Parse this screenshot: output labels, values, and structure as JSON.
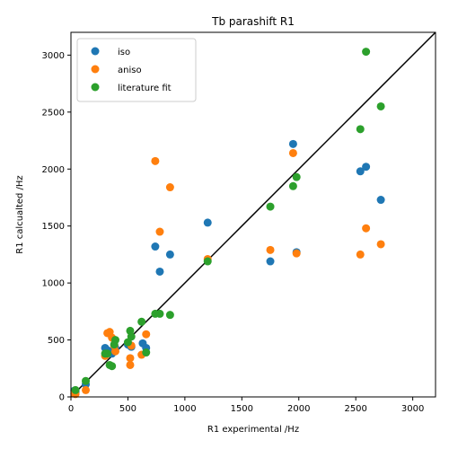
{
  "chart_data": {
    "type": "scatter",
    "title": "Tb parashift R1",
    "xlabel": "R1 experimental /Hz",
    "ylabel": "R1 calcualted /Hz",
    "xlim": [
      0,
      3200
    ],
    "ylim": [
      0,
      3200
    ],
    "xticks": [
      0,
      500,
      1000,
      1500,
      2000,
      2500,
      3000
    ],
    "yticks": [
      0,
      500,
      1000,
      1500,
      2000,
      2500,
      3000
    ],
    "grid": false,
    "legend": "top-left",
    "reference_line": {
      "x": [
        0,
        3200
      ],
      "y": [
        0,
        3200
      ],
      "color": "#000000"
    },
    "series": [
      {
        "name": "iso",
        "color": "#1f77b4",
        "points": [
          [
            30,
            55
          ],
          [
            40,
            45
          ],
          [
            130,
            110
          ],
          [
            300,
            430
          ],
          [
            320,
            410
          ],
          [
            340,
            400
          ],
          [
            360,
            380
          ],
          [
            390,
            430
          ],
          [
            500,
            460
          ],
          [
            520,
            450
          ],
          [
            530,
            440
          ],
          [
            630,
            470
          ],
          [
            660,
            430
          ],
          [
            740,
            1320
          ],
          [
            780,
            1100
          ],
          [
            870,
            1250
          ],
          [
            1200,
            1530
          ],
          [
            1750,
            1190
          ],
          [
            1950,
            2220
          ],
          [
            1980,
            1270
          ],
          [
            2540,
            1980
          ],
          [
            2590,
            2020
          ],
          [
            2720,
            1730
          ]
        ]
      },
      {
        "name": "aniso",
        "color": "#ff7f0e",
        "points": [
          [
            30,
            30
          ],
          [
            40,
            25
          ],
          [
            130,
            60
          ],
          [
            300,
            360
          ],
          [
            320,
            560
          ],
          [
            340,
            570
          ],
          [
            360,
            520
          ],
          [
            380,
            450
          ],
          [
            390,
            400
          ],
          [
            520,
            280
          ],
          [
            520,
            340
          ],
          [
            530,
            450
          ],
          [
            620,
            370
          ],
          [
            660,
            550
          ],
          [
            740,
            2070
          ],
          [
            780,
            1450
          ],
          [
            870,
            1840
          ],
          [
            1200,
            1210
          ],
          [
            1750,
            1290
          ],
          [
            1950,
            2140
          ],
          [
            1980,
            1260
          ],
          [
            2540,
            1250
          ],
          [
            2590,
            1480
          ],
          [
            2720,
            1340
          ]
        ]
      },
      {
        "name": "literature fit",
        "color": "#2ca02c",
        "points": [
          [
            40,
            60
          ],
          [
            130,
            140
          ],
          [
            300,
            380
          ],
          [
            320,
            380
          ],
          [
            340,
            280
          ],
          [
            360,
            270
          ],
          [
            380,
            460
          ],
          [
            390,
            500
          ],
          [
            500,
            480
          ],
          [
            520,
            580
          ],
          [
            530,
            530
          ],
          [
            620,
            660
          ],
          [
            660,
            390
          ],
          [
            740,
            730
          ],
          [
            780,
            730
          ],
          [
            870,
            720
          ],
          [
            1200,
            1190
          ],
          [
            1750,
            1670
          ],
          [
            1950,
            1850
          ],
          [
            1980,
            1930
          ],
          [
            2540,
            2350
          ],
          [
            2590,
            3030
          ],
          [
            2720,
            2550
          ]
        ]
      }
    ]
  }
}
